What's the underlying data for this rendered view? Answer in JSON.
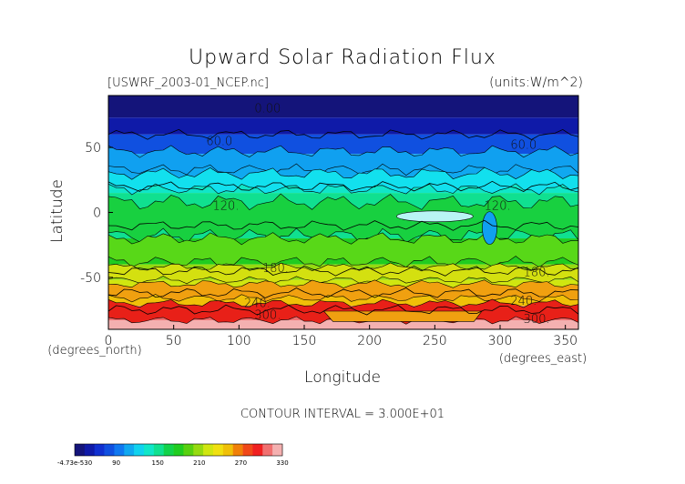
{
  "chart_data": {
    "type": "heatmap",
    "title": "Upward Solar Radiation Flux",
    "source_file": "[USWRF_2003-01_NCEP.nc]",
    "units": "(units:W/m^2)",
    "xlabel": "Longitude",
    "ylabel": "Latitude",
    "x_unit_label": "(degrees_east)",
    "y_unit_label": "(degrees_north)",
    "xlim": [
      0,
      360
    ],
    "ylim": [
      -90,
      90
    ],
    "x_ticks": [
      "0",
      "50",
      "100",
      "150",
      "200",
      "250",
      "300",
      "350"
    ],
    "x_tick_values": [
      0,
      50,
      100,
      150,
      200,
      250,
      300,
      350
    ],
    "y_ticks": [
      "50",
      "0",
      "-50"
    ],
    "y_tick_values": [
      50,
      0,
      -50
    ],
    "contour_interval_text": "CONTOUR INTERVAL = 3.000E+01",
    "contour_labels": [
      {
        "text": "0.00",
        "lon": 122,
        "lat": 77
      },
      {
        "text": "60.0",
        "lon": 85,
        "lat": 52
      },
      {
        "text": "60.0",
        "lon": 318,
        "lat": 49
      },
      {
        "text": "120.",
        "lon": 90,
        "lat": 2
      },
      {
        "text": "120.",
        "lon": 298,
        "lat": 2
      },
      {
        "text": "180.",
        "lon": 128,
        "lat": -46
      },
      {
        "text": "180.",
        "lon": 328,
        "lat": -49
      },
      {
        "text": "240.",
        "lon": 114,
        "lat": -73
      },
      {
        "text": "240.",
        "lon": 318,
        "lat": -71
      },
      {
        "text": "300.",
        "lon": 122,
        "lat": -82
      },
      {
        "text": "300.",
        "lon": 328,
        "lat": -85
      }
    ],
    "latitude_bands": [
      {
        "lat_from": 90,
        "lat_to": 73,
        "value": 0
      },
      {
        "lat_from": 73,
        "lat_to": 60,
        "value": 20
      },
      {
        "lat_from": 60,
        "lat_to": 45,
        "value": 60
      },
      {
        "lat_from": 45,
        "lat_to": 25,
        "value": 90
      },
      {
        "lat_from": 25,
        "lat_to": 15,
        "value": 110
      },
      {
        "lat_from": 15,
        "lat_to": -20,
        "value": 135
      },
      {
        "lat_from": -20,
        "lat_to": -40,
        "value": 165
      },
      {
        "lat_from": -40,
        "lat_to": -52,
        "value": 195
      },
      {
        "lat_from": -52,
        "lat_to": -62,
        "value": 215
      },
      {
        "lat_from": -62,
        "lat_to": -72,
        "value": 245
      },
      {
        "lat_from": -72,
        "lat_to": -83,
        "value": 300
      },
      {
        "lat_from": -83,
        "lat_to": -90,
        "value": 330
      }
    ],
    "colorbar": {
      "tick_labels": [
        "-4.73e-530",
        "90",
        "150",
        "210",
        "270",
        "330"
      ],
      "min": 0,
      "max": 330,
      "colors": [
        "#14147a",
        "#0f1aa8",
        "#1030d0",
        "#1050e0",
        "#1078f0",
        "#10a8f0",
        "#10d2ee",
        "#10e6c8",
        "#10e090",
        "#12d24a",
        "#20cc20",
        "#58d010",
        "#96da10",
        "#d0e610",
        "#f0e010",
        "#f0c008",
        "#f08008",
        "#f04818",
        "#f02020",
        "#f07070",
        "#f4b0b0"
      ]
    },
    "colors": {
      "polar_north": "#6a0aa8",
      "high_lat": "#0a14b0",
      "sub_arctic": "#1068e8",
      "mid_lat": "#10a0f0",
      "cyan": "#12e0ee",
      "tropics": "#18d040",
      "tropics_light": "#58d818",
      "yellow": "#d4e010",
      "orange": "#f0a010",
      "red": "#e82018",
      "pink": "#f4a4a4"
    }
  }
}
